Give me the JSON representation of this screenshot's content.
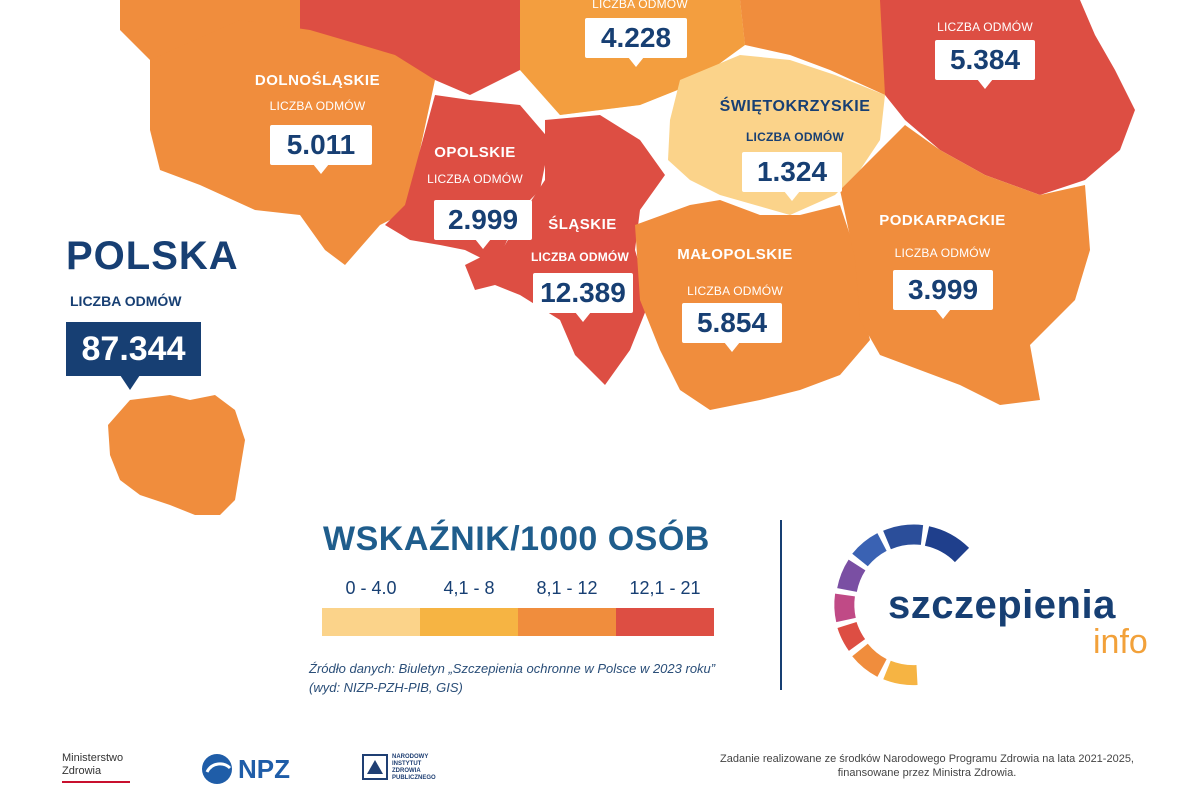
{
  "regions": [
    {
      "key": "dolnoslaskie",
      "name": "DOLNOŚLĄSKIE",
      "label": "LICZBA ODMÓW",
      "count": "5.011"
    },
    {
      "key": "opolskie",
      "name": "OPOLSKIE",
      "label": "LICZBA ODMÓW",
      "count": "2.999"
    },
    {
      "key": "slaskie",
      "name": "ŚLĄSKIE",
      "label": "LICZBA ODMÓW",
      "count": "12.389"
    },
    {
      "key": "malopolskie",
      "name": "MAŁOPOLSKIE",
      "label": "LICZBA ODMÓW",
      "count": "5.854"
    },
    {
      "key": "swietokrzyskie",
      "name": "ŚWIĘTOKRZYSKIE",
      "label": "LICZBA ODMÓW",
      "count": "1.324"
    },
    {
      "key": "podkarpackie",
      "name": "PODKARPACKIE",
      "label": "LICZBA ODMÓW",
      "count": "3.999"
    },
    {
      "key": "lodzkie",
      "name": "",
      "label": "LICZBA ODMÓW",
      "count": "4.228"
    },
    {
      "key": "lubelskie",
      "name": "",
      "label": "LICZBA ODMÓW",
      "count": "5.384"
    }
  ],
  "polska": {
    "title": "POLSKA",
    "label": "LICZBA ODMÓW",
    "count": "87.344"
  },
  "legend": {
    "title": "WSKAŹNIK/1000 OSÓB",
    "bins": [
      {
        "range": "0 - 4.0",
        "color": "#fbd38a"
      },
      {
        "range": "4,1 - 8",
        "color": "#f6b443"
      },
      {
        "range": "8,1 - 12",
        "color": "#f08d3d"
      },
      {
        "range": "12,1 - 21",
        "color": "#dd4e43"
      }
    ]
  },
  "source": {
    "line1": "Źródło danych: Biuletyn „Szczepienia ochronne w Polsce w 2023 roku”",
    "line2": "(wyd: NIZP-PZH-PIB, GIS)"
  },
  "brand": {
    "main": "szczepienia",
    "sub": "info"
  },
  "footer": {
    "ministry_line1": "Ministerstwo",
    "ministry_line2": "Zdrowia",
    "npz": "NPZ",
    "nipz": "NARODOWY INSTYTUT ZDROWIA PUBLICZNEGO",
    "note_line1": "Zadanie realizowane ze środków Narodowego Programu Zdrowia na lata 2021-2025,",
    "note_line2": "finansowane przez Ministra Zdrowia."
  },
  "colors": {
    "orange": "#f08d3d",
    "red": "#dd4e43",
    "yellow": "#fbd38a",
    "navy": "#173f73"
  }
}
